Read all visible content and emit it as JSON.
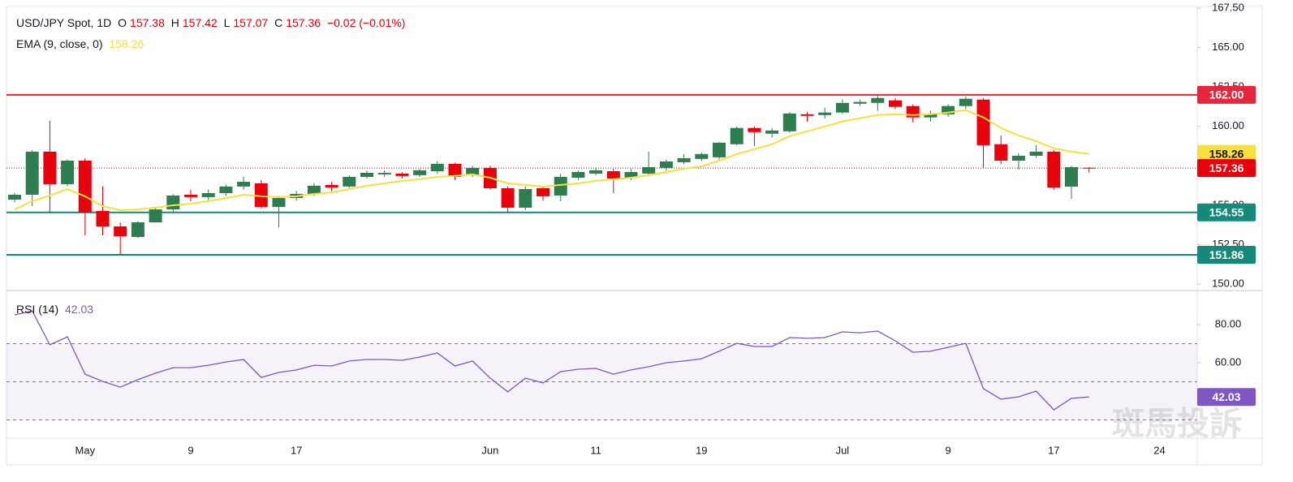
{
  "chart_data": {
    "type": "candlestick",
    "title": "USD/JPY Spot, 1D",
    "ohlc_labels": [
      "O",
      "H",
      "L",
      "C"
    ],
    "change": "−0.02 (−0.01%)",
    "watermark": "斑馬投訴",
    "up_color": "#2e7d4e",
    "down_color": "#e8000b",
    "categories": [
      null,
      null,
      null,
      null,
      "May",
      null,
      null,
      null,
      null,
      null,
      "9",
      null,
      null,
      null,
      null,
      null,
      "17",
      null,
      null,
      null,
      null,
      null,
      null,
      null,
      null,
      null,
      null,
      "Jun",
      null,
      null,
      null,
      null,
      null,
      "11",
      null,
      null,
      null,
      null,
      null,
      "19",
      null,
      null,
      null,
      null,
      null,
      null,
      null,
      "Jul",
      null,
      null,
      null,
      null,
      null,
      "9",
      null,
      null,
      null,
      null,
      null,
      "17",
      null,
      null,
      null,
      null,
      null,
      "24"
    ],
    "open": [
      155.36,
      155.67,
      158.4,
      156.34,
      157.83,
      154.64,
      153.66,
      152.99,
      153.92,
      154.74,
      155.67,
      155.52,
      155.77,
      156.19,
      156.39,
      154.9,
      155.46,
      155.72,
      156.29,
      156.19,
      156.8,
      156.96,
      157.01,
      156.91,
      157.16,
      157.63,
      156.91,
      157.37,
      156.08,
      154.85,
      156.08,
      155.62,
      156.75,
      157.01,
      157.16,
      156.75,
      157.01,
      157.37,
      157.73,
      157.94,
      158.04,
      158.87,
      159.9,
      159.54,
      159.69,
      160.77,
      160.72,
      160.88,
      161.44,
      161.49,
      161.65,
      161.29,
      160.57,
      160.77,
      161.29,
      161.7,
      158.87,
      157.83,
      158.14,
      158.4,
      156.18,
      157.38,
      null,
      null,
      null,
      null
    ],
    "high": [
      155.8,
      158.5,
      160.36,
      157.9,
      157.99,
      156.2,
      153.9,
      154.0,
      154.9,
      155.7,
      155.98,
      156.0,
      156.3,
      156.8,
      156.6,
      155.57,
      155.9,
      156.4,
      156.5,
      156.9,
      157.2,
      157.2,
      157.1,
      157.3,
      157.8,
      157.7,
      157.5,
      157.5,
      156.2,
      156.2,
      156.2,
      157.0,
      157.2,
      157.4,
      157.3,
      157.3,
      158.4,
      157.9,
      158.25,
      158.35,
      159.0,
      160.0,
      160.0,
      159.9,
      160.9,
      160.9,
      161.19,
      161.7,
      161.7,
      162.0,
      161.8,
      161.4,
      161.0,
      161.4,
      161.9,
      161.8,
      159.43,
      158.3,
      158.81,
      158.5,
      157.5,
      157.42,
      null,
      null,
      null,
      null
    ],
    "low": [
      155.2,
      154.95,
      154.54,
      156.2,
      153.1,
      153.1,
      151.86,
      152.94,
      153.9,
      154.6,
      155.26,
      155.3,
      155.6,
      156.0,
      154.8,
      153.6,
      155.3,
      155.6,
      155.9,
      156.1,
      156.7,
      156.8,
      156.7,
      156.8,
      157.0,
      156.6,
      156.8,
      156.0,
      154.54,
      154.7,
      155.3,
      155.26,
      156.6,
      156.9,
      155.77,
      156.6,
      156.9,
      157.2,
      157.6,
      157.8,
      157.9,
      158.8,
      158.76,
      159.3,
      159.6,
      160.31,
      160.5,
      160.8,
      161.3,
      160.98,
      161.1,
      160.26,
      160.3,
      160.6,
      161.1,
      157.37,
      157.6,
      157.27,
      158.0,
      156.0,
      155.41,
      157.07,
      null,
      null,
      null,
      null
    ],
    "close": [
      155.67,
      158.4,
      156.34,
      157.83,
      154.54,
      153.66,
      153.04,
      153.92,
      154.74,
      155.62,
      155.52,
      155.77,
      156.19,
      156.49,
      154.9,
      155.46,
      155.72,
      156.24,
      156.13,
      156.8,
      157.06,
      157.06,
      156.86,
      157.22,
      157.63,
      156.8,
      157.37,
      156.08,
      154.85,
      156.03,
      155.57,
      156.8,
      157.11,
      157.22,
      156.7,
      157.11,
      157.42,
      157.78,
      157.99,
      158.25,
      158.97,
      159.9,
      159.64,
      159.74,
      160.82,
      160.67,
      160.88,
      161.49,
      161.55,
      161.8,
      161.24,
      160.57,
      160.77,
      161.29,
      161.75,
      158.81,
      157.83,
      158.14,
      158.4,
      156.13,
      157.42,
      157.36,
      null,
      null,
      null,
      null
    ],
    "ema": {
      "name": "EMA (9, close, 0)",
      "color": "#f5e03c",
      "values": [
        154.74,
        155.26,
        155.62,
        156.03,
        155.57,
        154.95,
        154.69,
        154.74,
        154.85,
        155.0,
        155.1,
        155.26,
        155.46,
        155.67,
        155.57,
        155.52,
        155.57,
        155.72,
        155.82,
        156.03,
        156.24,
        156.39,
        156.55,
        156.65,
        156.8,
        156.86,
        156.96,
        156.75,
        156.39,
        156.29,
        156.19,
        156.29,
        156.39,
        156.55,
        156.65,
        156.75,
        156.91,
        157.11,
        157.32,
        157.47,
        157.83,
        158.25,
        158.56,
        158.87,
        159.38,
        159.69,
        160.0,
        160.31,
        160.52,
        160.72,
        160.77,
        160.72,
        160.77,
        160.88,
        161.03,
        160.57,
        159.9,
        159.43,
        159.07,
        158.61,
        158.4,
        158.26,
        null,
        null,
        null,
        null
      ]
    },
    "levels": [
      {
        "value": 162,
        "label": "162.00",
        "color": "#e8253a"
      },
      {
        "value": 154.55,
        "label": "154.55",
        "color": "#15897a"
      },
      {
        "value": 151.86,
        "label": "151.86",
        "color": "#15897a"
      }
    ],
    "ylim": [
      149.6,
      167.6
    ],
    "yticks": [
      {
        "value": 150,
        "label": "150.00"
      },
      {
        "value": 152.5,
        "label": "152.50"
      },
      {
        "value": 155,
        "label": "155.00"
      },
      {
        "value": 157.5,
        "label": "157.50"
      },
      {
        "value": 160,
        "label": "160.00"
      },
      {
        "value": 162.5,
        "label": "162.50"
      },
      {
        "value": 165,
        "label": "165.00"
      },
      {
        "value": 167.5,
        "label": "167.50"
      }
    ],
    "rsi": {
      "name": "RSI (14)",
      "color": "#7e57c2",
      "values": [
        85.1,
        87.2,
        69.4,
        73.6,
        54.0,
        50.2,
        47.2,
        51.1,
        54.5,
        57.4,
        57.4,
        58.7,
        60.4,
        61.7,
        52.3,
        54.9,
        56.2,
        58.7,
        58.3,
        60.9,
        61.7,
        61.7,
        61.3,
        63.0,
        65.1,
        58.3,
        60.9,
        51.9,
        44.7,
        51.9,
        49.4,
        55.3,
        56.6,
        57.0,
        54.0,
        56.2,
        57.9,
        60.0,
        60.9,
        62.1,
        66.0,
        70.2,
        68.5,
        68.5,
        73.2,
        72.8,
        73.2,
        76.2,
        75.7,
        76.6,
        71.5,
        65.5,
        66.0,
        68.1,
        70.2,
        46.4,
        40.9,
        42.1,
        45.1,
        35.3,
        41.3,
        42.03,
        null,
        null,
        null,
        null
      ]
    },
    "rsi_levels": [
      70,
      50,
      30
    ],
    "y2lim": [
      20.4,
      97.9
    ],
    "y2ticks": [
      {
        "value": 60,
        "label": "60.00"
      },
      {
        "value": 80,
        "label": "80.00"
      }
    ]
  }
}
